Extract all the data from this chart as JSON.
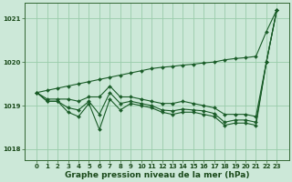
{
  "xlabel": "Graphe pression niveau de la mer (hPa)",
  "bg_color": "#cce8d8",
  "grid_color": "#99ccaa",
  "line_color": "#1a5c28",
  "x": [
    0,
    1,
    2,
    3,
    4,
    5,
    6,
    7,
    8,
    9,
    10,
    11,
    12,
    13,
    14,
    15,
    16,
    17,
    18,
    19,
    20,
    21,
    22,
    23
  ],
  "series_max": [
    1019.3,
    1019.15,
    1019.15,
    1019.15,
    1019.1,
    1019.2,
    1019.2,
    1019.45,
    1019.2,
    1019.2,
    1019.15,
    1019.1,
    1019.05,
    1019.05,
    1019.1,
    1019.05,
    1019.0,
    1018.95,
    1018.8,
    1018.8,
    1018.8,
    1018.75,
    1020.0,
    1021.2
  ],
  "series_mean": [
    1019.3,
    1019.1,
    1019.1,
    1018.95,
    1018.9,
    1019.1,
    1018.8,
    1019.3,
    1019.05,
    1019.1,
    1019.05,
    1019.0,
    1018.9,
    1018.88,
    1018.92,
    1018.9,
    1018.88,
    1018.82,
    1018.62,
    1018.67,
    1018.67,
    1018.62,
    1020.0,
    1021.2
  ],
  "series_min": [
    1019.3,
    1019.1,
    1019.1,
    1018.85,
    1018.75,
    1019.05,
    1018.45,
    1019.15,
    1018.9,
    1019.05,
    1019.0,
    1018.95,
    1018.85,
    1018.8,
    1018.85,
    1018.85,
    1018.8,
    1018.75,
    1018.55,
    1018.6,
    1018.6,
    1018.55,
    1020.0,
    1021.2
  ],
  "series_trend": [
    1019.3,
    1019.35,
    1019.4,
    1019.45,
    1019.5,
    1019.55,
    1019.6,
    1019.65,
    1019.7,
    1019.75,
    1019.8,
    1019.85,
    1019.88,
    1019.9,
    1019.93,
    1019.95,
    1019.98,
    1020.0,
    1020.05,
    1020.08,
    1020.1,
    1020.13,
    1020.7,
    1021.2
  ],
  "ylim": [
    1017.75,
    1021.35
  ],
  "yticks": [
    1018,
    1019,
    1020,
    1021
  ],
  "xticks": [
    0,
    1,
    2,
    3,
    4,
    5,
    6,
    7,
    8,
    9,
    10,
    11,
    12,
    13,
    14,
    15,
    16,
    17,
    18,
    19,
    20,
    21,
    22,
    23
  ],
  "markersize": 2.0,
  "linewidth": 0.8,
  "xlabel_fontsize": 6.5,
  "tick_fontsize": 5.0
}
